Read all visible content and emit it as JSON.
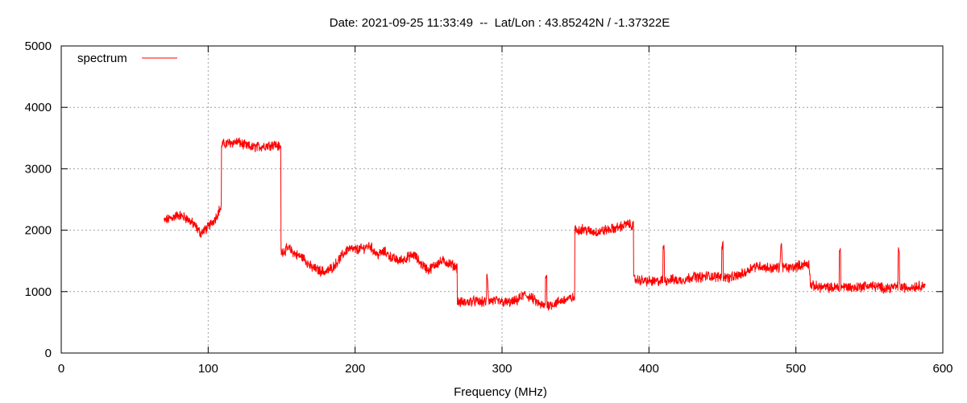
{
  "chart_data": {
    "type": "line",
    "title": "Date: 2021-09-25 11:33:49  --  Lat/Lon : 43.85242N / -1.37322E",
    "xlabel": "Frequency (MHz)",
    "ylabel": "",
    "xlim": [
      0,
      600
    ],
    "ylim": [
      0,
      5000
    ],
    "x_ticks": [
      0,
      100,
      200,
      300,
      400,
      500,
      600
    ],
    "y_ticks": [
      0,
      1000,
      2000,
      3000,
      4000,
      5000
    ],
    "grid": true,
    "legend_position": "top-left",
    "line_color": "#ff0000",
    "series": [
      {
        "name": "spectrum",
        "x": [
          70,
          75,
          80,
          85,
          90,
          95,
          100,
          105,
          108,
          110,
          115,
          120,
          125,
          130,
          135,
          140,
          145,
          149,
          150,
          155,
          160,
          165,
          170,
          175,
          180,
          185,
          190,
          195,
          200,
          205,
          210,
          215,
          220,
          225,
          230,
          235,
          240,
          245,
          250,
          255,
          260,
          265,
          269,
          270,
          275,
          280,
          285,
          289,
          290,
          291,
          295,
          300,
          305,
          310,
          315,
          320,
          325,
          329,
          330,
          331,
          335,
          340,
          345,
          349,
          350,
          355,
          360,
          365,
          370,
          375,
          380,
          385,
          389,
          390,
          395,
          400,
          405,
          409,
          410,
          411,
          415,
          420,
          425,
          430,
          435,
          440,
          445,
          449,
          450,
          451,
          455,
          460,
          465,
          470,
          475,
          480,
          485,
          489,
          490,
          491,
          495,
          500,
          505,
          509,
          510,
          515,
          520,
          525,
          529,
          530,
          531,
          535,
          540,
          545,
          550,
          555,
          560,
          565,
          569,
          570,
          571,
          575,
          580,
          585,
          588
        ],
        "y": [
          2150,
          2200,
          2250,
          2200,
          2100,
          1950,
          2050,
          2200,
          2350,
          3400,
          3420,
          3440,
          3380,
          3350,
          3360,
          3380,
          3400,
          3350,
          1650,
          1700,
          1600,
          1550,
          1400,
          1350,
          1320,
          1400,
          1550,
          1700,
          1680,
          1700,
          1750,
          1600,
          1650,
          1550,
          1500,
          1550,
          1600,
          1450,
          1350,
          1450,
          1500,
          1450,
          1400,
          830,
          820,
          850,
          830,
          830,
          1250,
          850,
          850,
          830,
          820,
          850,
          950,
          900,
          800,
          760,
          1250,
          780,
          800,
          850,
          880,
          900,
          2000,
          2020,
          1980,
          1970,
          2000,
          2020,
          2050,
          2100,
          2080,
          1200,
          1180,
          1170,
          1160,
          1180,
          1700,
          1180,
          1200,
          1180,
          1200,
          1250,
          1230,
          1260,
          1240,
          1250,
          1750,
          1250,
          1220,
          1260,
          1300,
          1400,
          1420,
          1390,
          1380,
          1400,
          1800,
          1400,
          1380,
          1410,
          1440,
          1450,
          1100,
          1080,
          1070,
          1060,
          1080,
          1650,
          1080,
          1080,
          1060,
          1090,
          1100,
          1080,
          1060,
          1070,
          1080,
          1650,
          1080,
          1060,
          1080,
          1100,
          1100
        ]
      }
    ]
  }
}
